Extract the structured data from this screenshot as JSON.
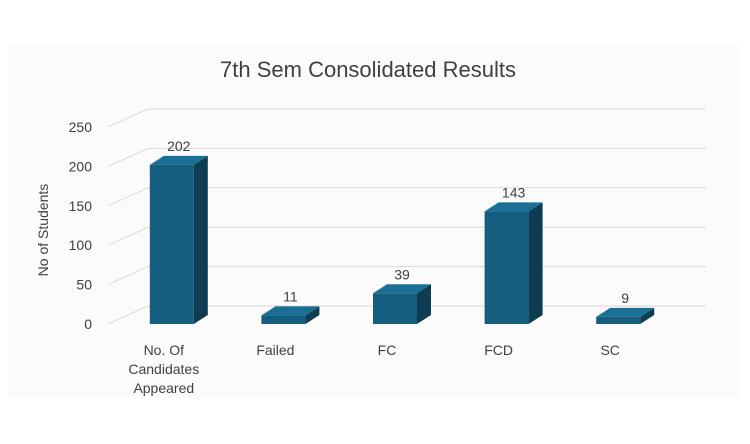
{
  "chart_data": {
    "type": "bar",
    "title": "7th Sem Consolidated Results",
    "xlabel": "",
    "ylabel": "No of Students",
    "categories": [
      [
        "No. Of",
        "Candidates",
        "Appeared"
      ],
      [
        "Failed"
      ],
      [
        "FC"
      ],
      [
        "FCD"
      ],
      [
        "SC"
      ]
    ],
    "values": [
      202,
      11,
      39,
      143,
      9
    ],
    "ylim": [
      0,
      250
    ],
    "yticks": [
      0,
      50,
      100,
      150,
      200,
      250
    ],
    "grid": true,
    "legend": "none",
    "bar_style": "3d",
    "colors": {
      "bar_front": "#165e7f",
      "bar_top": "#1c6f94",
      "bar_side": "#0e3d53",
      "grid": "#d9d9d9",
      "text": "#404040",
      "plot_background": "#fbfbfb"
    }
  }
}
